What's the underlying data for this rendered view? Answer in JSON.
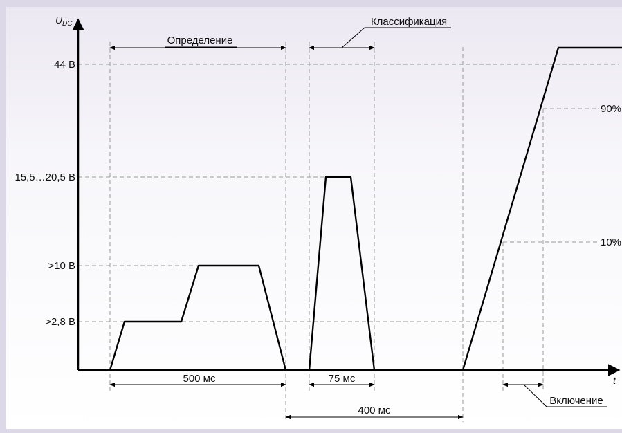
{
  "axes": {
    "y_label": "U",
    "y_label_sub": "DC",
    "x_label": "t"
  },
  "levels": {
    "v44": "44 В",
    "v15": "15,5…20,5 В",
    "v10": ">10 В",
    "v28": ">2,8 В",
    "p90": "90%",
    "p10": "10%"
  },
  "phases": {
    "detection": "Определение",
    "classification": "Классификация",
    "power_on": "Включение"
  },
  "durations": {
    "d500": "500 мс",
    "d75": "75 мс",
    "d400": "400 мс"
  },
  "colors": {
    "background_top": "#d6d0e6",
    "background_bottom": "#ffffff",
    "line": "#000000",
    "guide": "#9a9a9a"
  }
}
